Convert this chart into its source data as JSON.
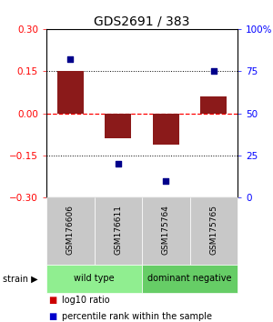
{
  "title": "GDS2691 / 383",
  "samples": [
    "GSM176606",
    "GSM176611",
    "GSM175764",
    "GSM175765"
  ],
  "log10_ratio": [
    0.15,
    -0.09,
    -0.11,
    0.06
  ],
  "percentile_rank": [
    82,
    20,
    10,
    75
  ],
  "groups": [
    {
      "label": "wild type",
      "color": "#90EE90",
      "samples": [
        0,
        1
      ]
    },
    {
      "label": "dominant negative",
      "color": "#66CD66",
      "samples": [
        2,
        3
      ]
    }
  ],
  "group_row_label": "strain",
  "ylim": [
    -0.3,
    0.3
  ],
  "y2lim": [
    0,
    100
  ],
  "yticks": [
    -0.3,
    -0.15,
    0,
    0.15,
    0.3
  ],
  "y2ticks": [
    0,
    25,
    50,
    75,
    100
  ],
  "hlines": [
    -0.15,
    0,
    0.15
  ],
  "hline_colors": [
    "black",
    "red",
    "black"
  ],
  "hline_styles": [
    "dotted",
    "dashed",
    "dotted"
  ],
  "bar_color": "#8B1A1A",
  "dot_color": "#00008B",
  "bar_width": 0.55,
  "legend_items": [
    {
      "color": "#CC0000",
      "label": "log10 ratio"
    },
    {
      "color": "#0000CC",
      "label": "percentile rank within the sample"
    }
  ],
  "sample_box_color": "#C8C8C8",
  "title_fontsize": 10,
  "tick_fontsize": 7.5,
  "sample_fontsize": 6.5,
  "group_fontsize": 7,
  "legend_fontsize": 7
}
